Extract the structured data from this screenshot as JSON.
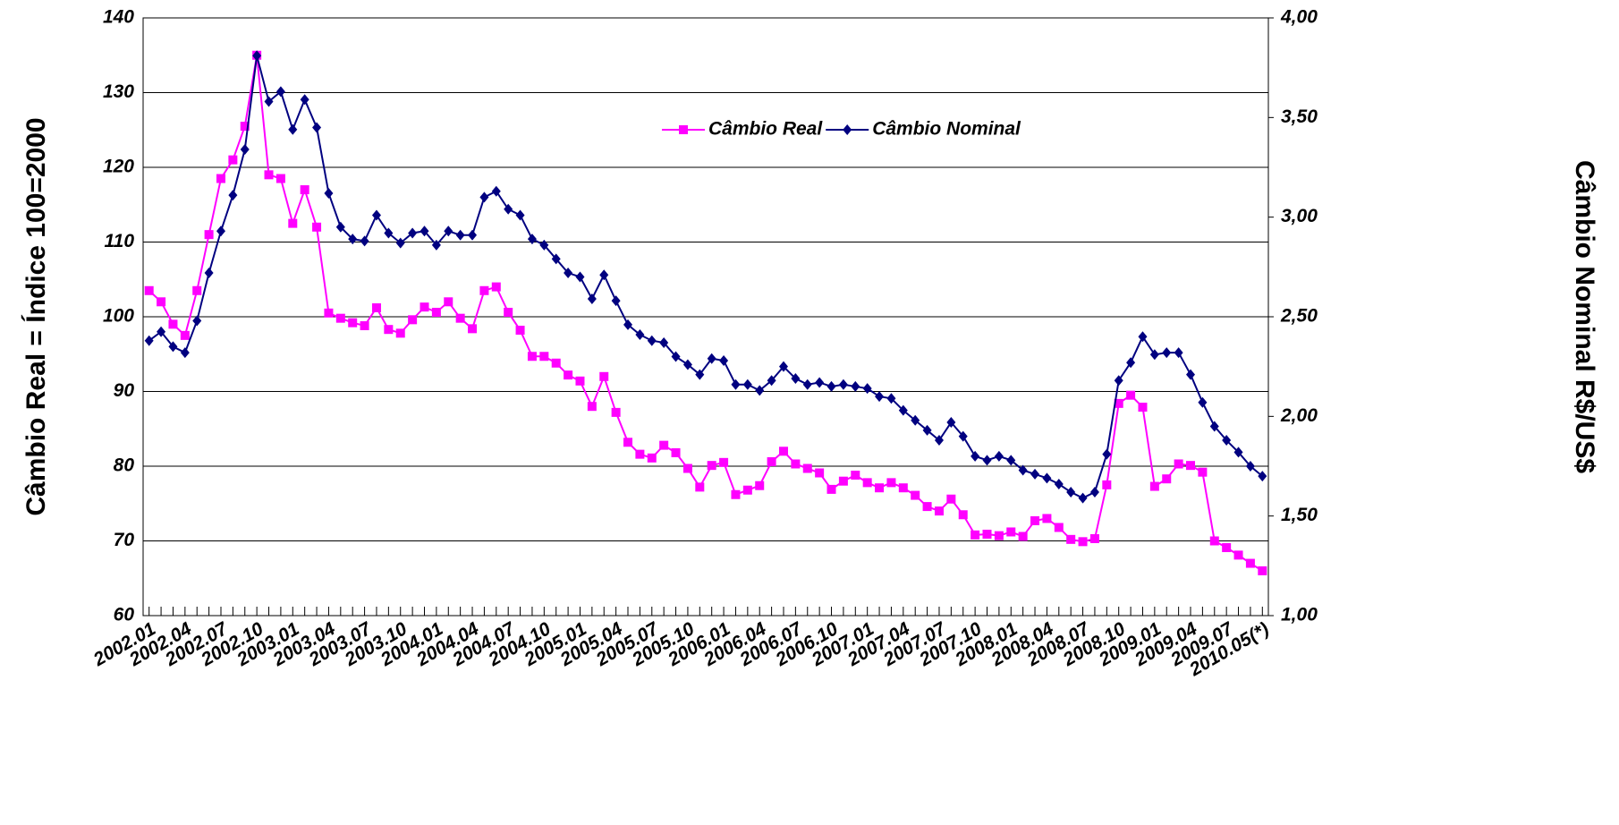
{
  "chart_data": {
    "type": "line",
    "y_label": "Câmbio Real = Índice 100=2000",
    "y2_label": "Câmbio Nominal R$/US$",
    "categories": [
      "2002.01",
      null,
      null,
      "2002.04",
      null,
      null,
      "2002.07",
      null,
      null,
      "2002.10",
      null,
      null,
      "2003.01",
      null,
      null,
      "2003.04",
      null,
      null,
      "2003.07",
      null,
      null,
      "2003.10",
      null,
      null,
      "2004.01",
      null,
      null,
      "2004.04",
      null,
      null,
      "2004.07",
      null,
      null,
      "2004.10",
      null,
      null,
      "2005.01",
      null,
      null,
      "2005.04",
      null,
      null,
      "2005.07",
      null,
      null,
      "2005.10",
      null,
      null,
      "2006.01",
      null,
      null,
      "2006.04",
      null,
      null,
      "2006.07",
      null,
      null,
      "2006.10",
      null,
      null,
      "2007.01",
      null,
      null,
      "2007.04",
      null,
      null,
      "2007.07",
      null,
      null,
      "2007.10",
      null,
      null,
      "2008.01",
      null,
      null,
      "2008.04",
      null,
      null,
      "2008.07",
      null,
      null,
      "2008.10",
      null,
      null,
      "2009.01",
      null,
      null,
      "2009.04",
      null,
      null,
      "2009.07",
      null,
      null,
      "2010.05(*)"
    ],
    "series": [
      {
        "name": "Câmbio Real",
        "color": "#ff00ff",
        "marker": "square",
        "values": [
          103.5,
          102,
          99,
          97.5,
          103.5,
          111,
          118.5,
          121,
          125.5,
          135,
          119,
          118.5,
          112.5,
          117,
          112,
          100.5,
          99.8,
          99.2,
          98.8,
          101.2,
          98.3,
          97.8,
          99.6,
          101.3,
          100.6,
          102,
          99.8,
          98.4,
          103.5,
          104,
          100.6,
          98.2,
          94.7,
          94.7,
          93.8,
          92.2,
          91.4,
          88,
          92,
          87.2,
          83.2,
          81.6,
          81.1,
          82.8,
          81.8,
          79.7,
          77.2,
          80.1,
          80.5,
          76.2,
          76.8,
          77.4,
          80.6,
          82,
          80.3,
          79.7,
          79.1,
          76.9,
          78,
          78.8,
          77.8,
          77.1,
          77.8,
          77.1,
          76.1,
          74.6,
          74,
          75.6,
          73.5,
          70.8,
          70.9,
          70.7,
          71.2,
          70.6,
          72.7,
          73,
          71.8,
          70.2,
          69.9,
          70.3,
          77.5,
          88.4,
          89.5,
          87.9,
          77.3,
          78.3,
          80.3,
          80.1,
          79.2,
          70,
          69.1,
          68.1,
          67,
          66
        ]
      },
      {
        "name": "Câmbio Nominal",
        "color": "#000080",
        "marker": "diamond",
        "axis": "y2",
        "values": [
          2.38,
          2.425,
          2.35,
          2.32,
          2.48,
          2.72,
          2.93,
          3.11,
          3.34,
          3.81,
          3.58,
          3.63,
          3.44,
          3.59,
          3.45,
          3.12,
          2.95,
          2.89,
          2.88,
          3.01,
          2.92,
          2.87,
          2.92,
          2.93,
          2.86,
          2.93,
          2.91,
          2.91,
          3.1,
          3.13,
          3.04,
          3.01,
          2.89,
          2.86,
          2.79,
          2.72,
          2.7,
          2.59,
          2.71,
          2.58,
          2.46,
          2.41,
          2.38,
          2.37,
          2.3,
          2.26,
          2.21,
          2.29,
          2.28,
          2.16,
          2.16,
          2.13,
          2.18,
          2.25,
          2.19,
          2.16,
          2.17,
          2.15,
          2.16,
          2.15,
          2.14,
          2.1,
          2.09,
          2.03,
          1.98,
          1.93,
          1.88,
          1.97,
          1.9,
          1.8,
          1.78,
          1.8,
          1.78,
          1.73,
          1.71,
          1.69,
          1.66,
          1.62,
          1.59,
          1.62,
          1.81,
          2.18,
          2.27,
          2.4,
          2.31,
          2.32,
          2.32,
          2.21,
          2.07,
          1.95,
          1.88,
          1.82,
          1.75,
          1.7
        ]
      }
    ],
    "ylim": [
      60,
      140
    ],
    "yticks": [
      60,
      70,
      80,
      90,
      100,
      110,
      120,
      130,
      140
    ],
    "y2lim": [
      1,
      4
    ],
    "y2ticks": [
      {
        "value": 1,
        "label": "1,00"
      },
      {
        "value": 1.5,
        "label": "1,50"
      },
      {
        "value": 2,
        "label": "2,00"
      },
      {
        "value": 2.5,
        "label": "2,50"
      },
      {
        "value": 3,
        "label": "3,00"
      },
      {
        "value": 3.5,
        "label": "3,50"
      },
      {
        "value": 4,
        "label": "4,00"
      }
    ],
    "grid": true,
    "legend": "top-right"
  }
}
